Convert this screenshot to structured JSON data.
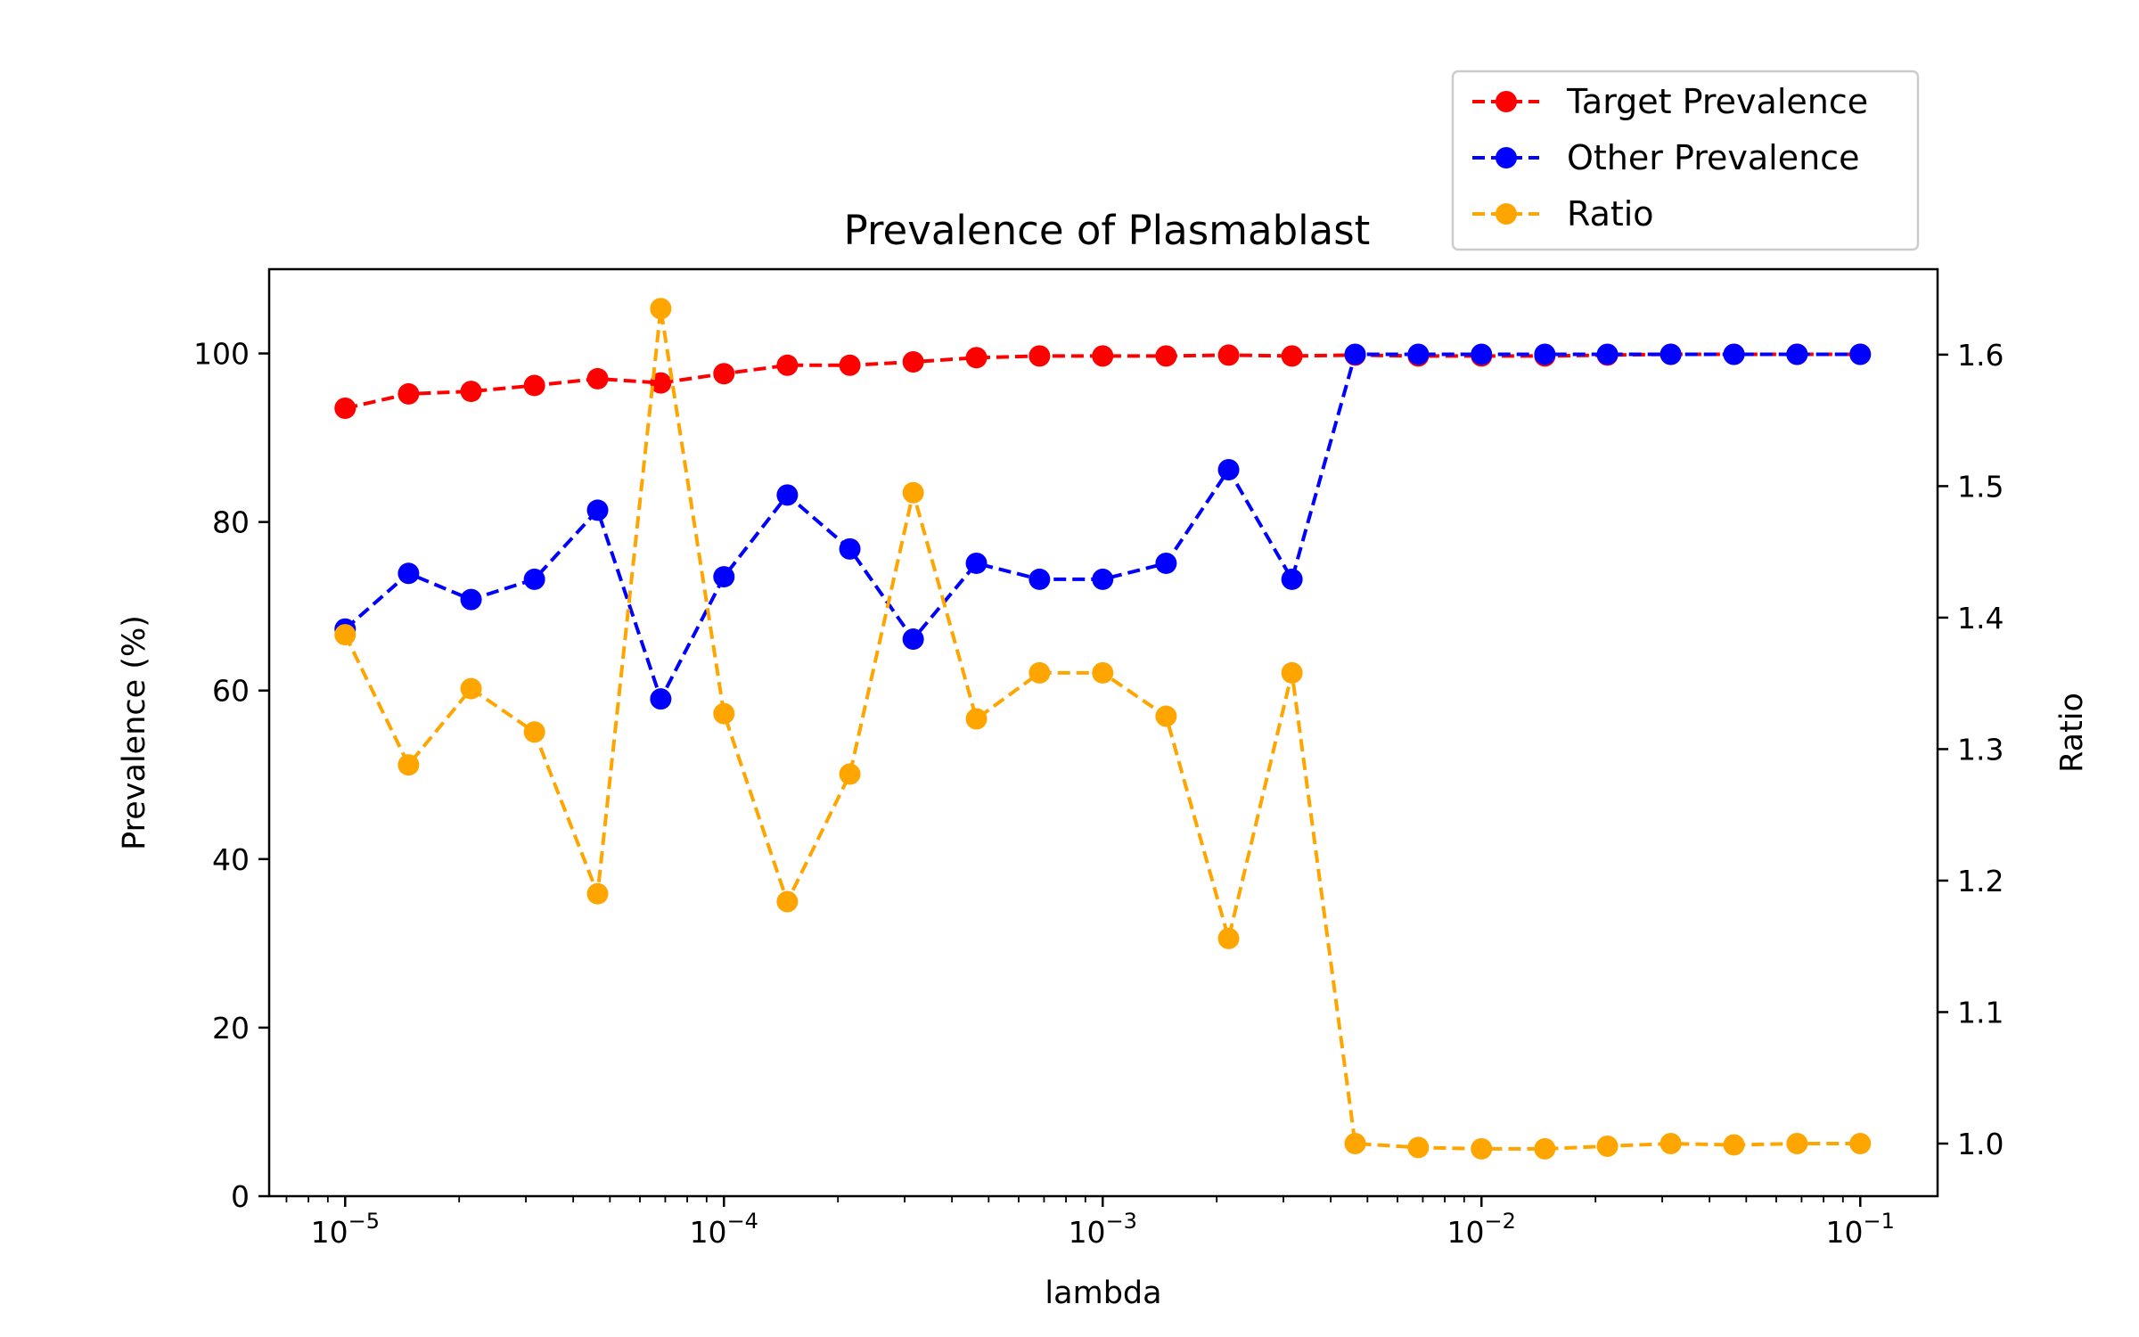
{
  "chart_data": {
    "type": "line",
    "title": "Prevalence of Plasmablast",
    "xlabel": "lambda",
    "ylabel": "Prevalence (%)",
    "y2label": "Ratio",
    "xscale": "log",
    "xlim": [
      6.3e-06,
      0.16
    ],
    "ylim": [
      0,
      110
    ],
    "y2lim": [
      0.96,
      1.665
    ],
    "x_ticks": [
      {
        "value": 1e-05,
        "base": "10",
        "exp": "−5"
      },
      {
        "value": 0.0001,
        "base": "10",
        "exp": "−4"
      },
      {
        "value": 0.001,
        "base": "10",
        "exp": "−3"
      },
      {
        "value": 0.01,
        "base": "10",
        "exp": "−2"
      },
      {
        "value": 0.1,
        "base": "10",
        "exp": "−1"
      }
    ],
    "y_ticks": [
      "0",
      "20",
      "40",
      "60",
      "80",
      "100"
    ],
    "y2_ticks": [
      "1.0",
      "1.1",
      "1.2",
      "1.3",
      "1.4",
      "1.5",
      "1.6"
    ],
    "x": [
      1e-05,
      1.47e-05,
      2.15e-05,
      3.16e-05,
      4.64e-05,
      6.81e-05,
      0.0001,
      0.000147,
      0.000215,
      0.000316,
      0.000464,
      0.000681,
      0.001,
      0.00147,
      0.00215,
      0.00316,
      0.00464,
      0.00681,
      0.01,
      0.0147,
      0.0215,
      0.0316,
      0.0464,
      0.0681,
      0.1
    ],
    "series": [
      {
        "name": "Target Prevalence",
        "axis": "left",
        "color": "#ff0000",
        "values": [
          93.5,
          95.2,
          95.5,
          96.2,
          97.0,
          96.5,
          97.6,
          98.6,
          98.6,
          99.0,
          99.5,
          99.7,
          99.7,
          99.7,
          99.8,
          99.7,
          99.8,
          99.7,
          99.7,
          99.7,
          99.8,
          99.9,
          99.9,
          99.9,
          99.9
        ]
      },
      {
        "name": "Other Prevalence",
        "axis": "left",
        "color": "#0000ff",
        "values": [
          67.3,
          73.9,
          70.8,
          73.2,
          81.4,
          59.0,
          73.5,
          83.2,
          76.8,
          66.1,
          75.1,
          73.2,
          73.2,
          75.1,
          86.2,
          73.2,
          99.9,
          99.9,
          99.9,
          99.9,
          99.9,
          99.9,
          99.9,
          99.9,
          99.9
        ]
      },
      {
        "name": "Ratio",
        "axis": "right",
        "color": "#ffa500",
        "values": [
          1.387,
          1.288,
          1.346,
          1.313,
          1.19,
          1.635,
          1.327,
          1.184,
          1.281,
          1.495,
          1.323,
          1.358,
          1.358,
          1.325,
          1.156,
          1.358,
          1.0,
          0.997,
          0.996,
          0.996,
          0.998,
          1.0,
          0.999,
          1.0,
          1.0
        ]
      }
    ],
    "legend": {
      "placement": "upper-right, above plot"
    },
    "grid": false
  }
}
